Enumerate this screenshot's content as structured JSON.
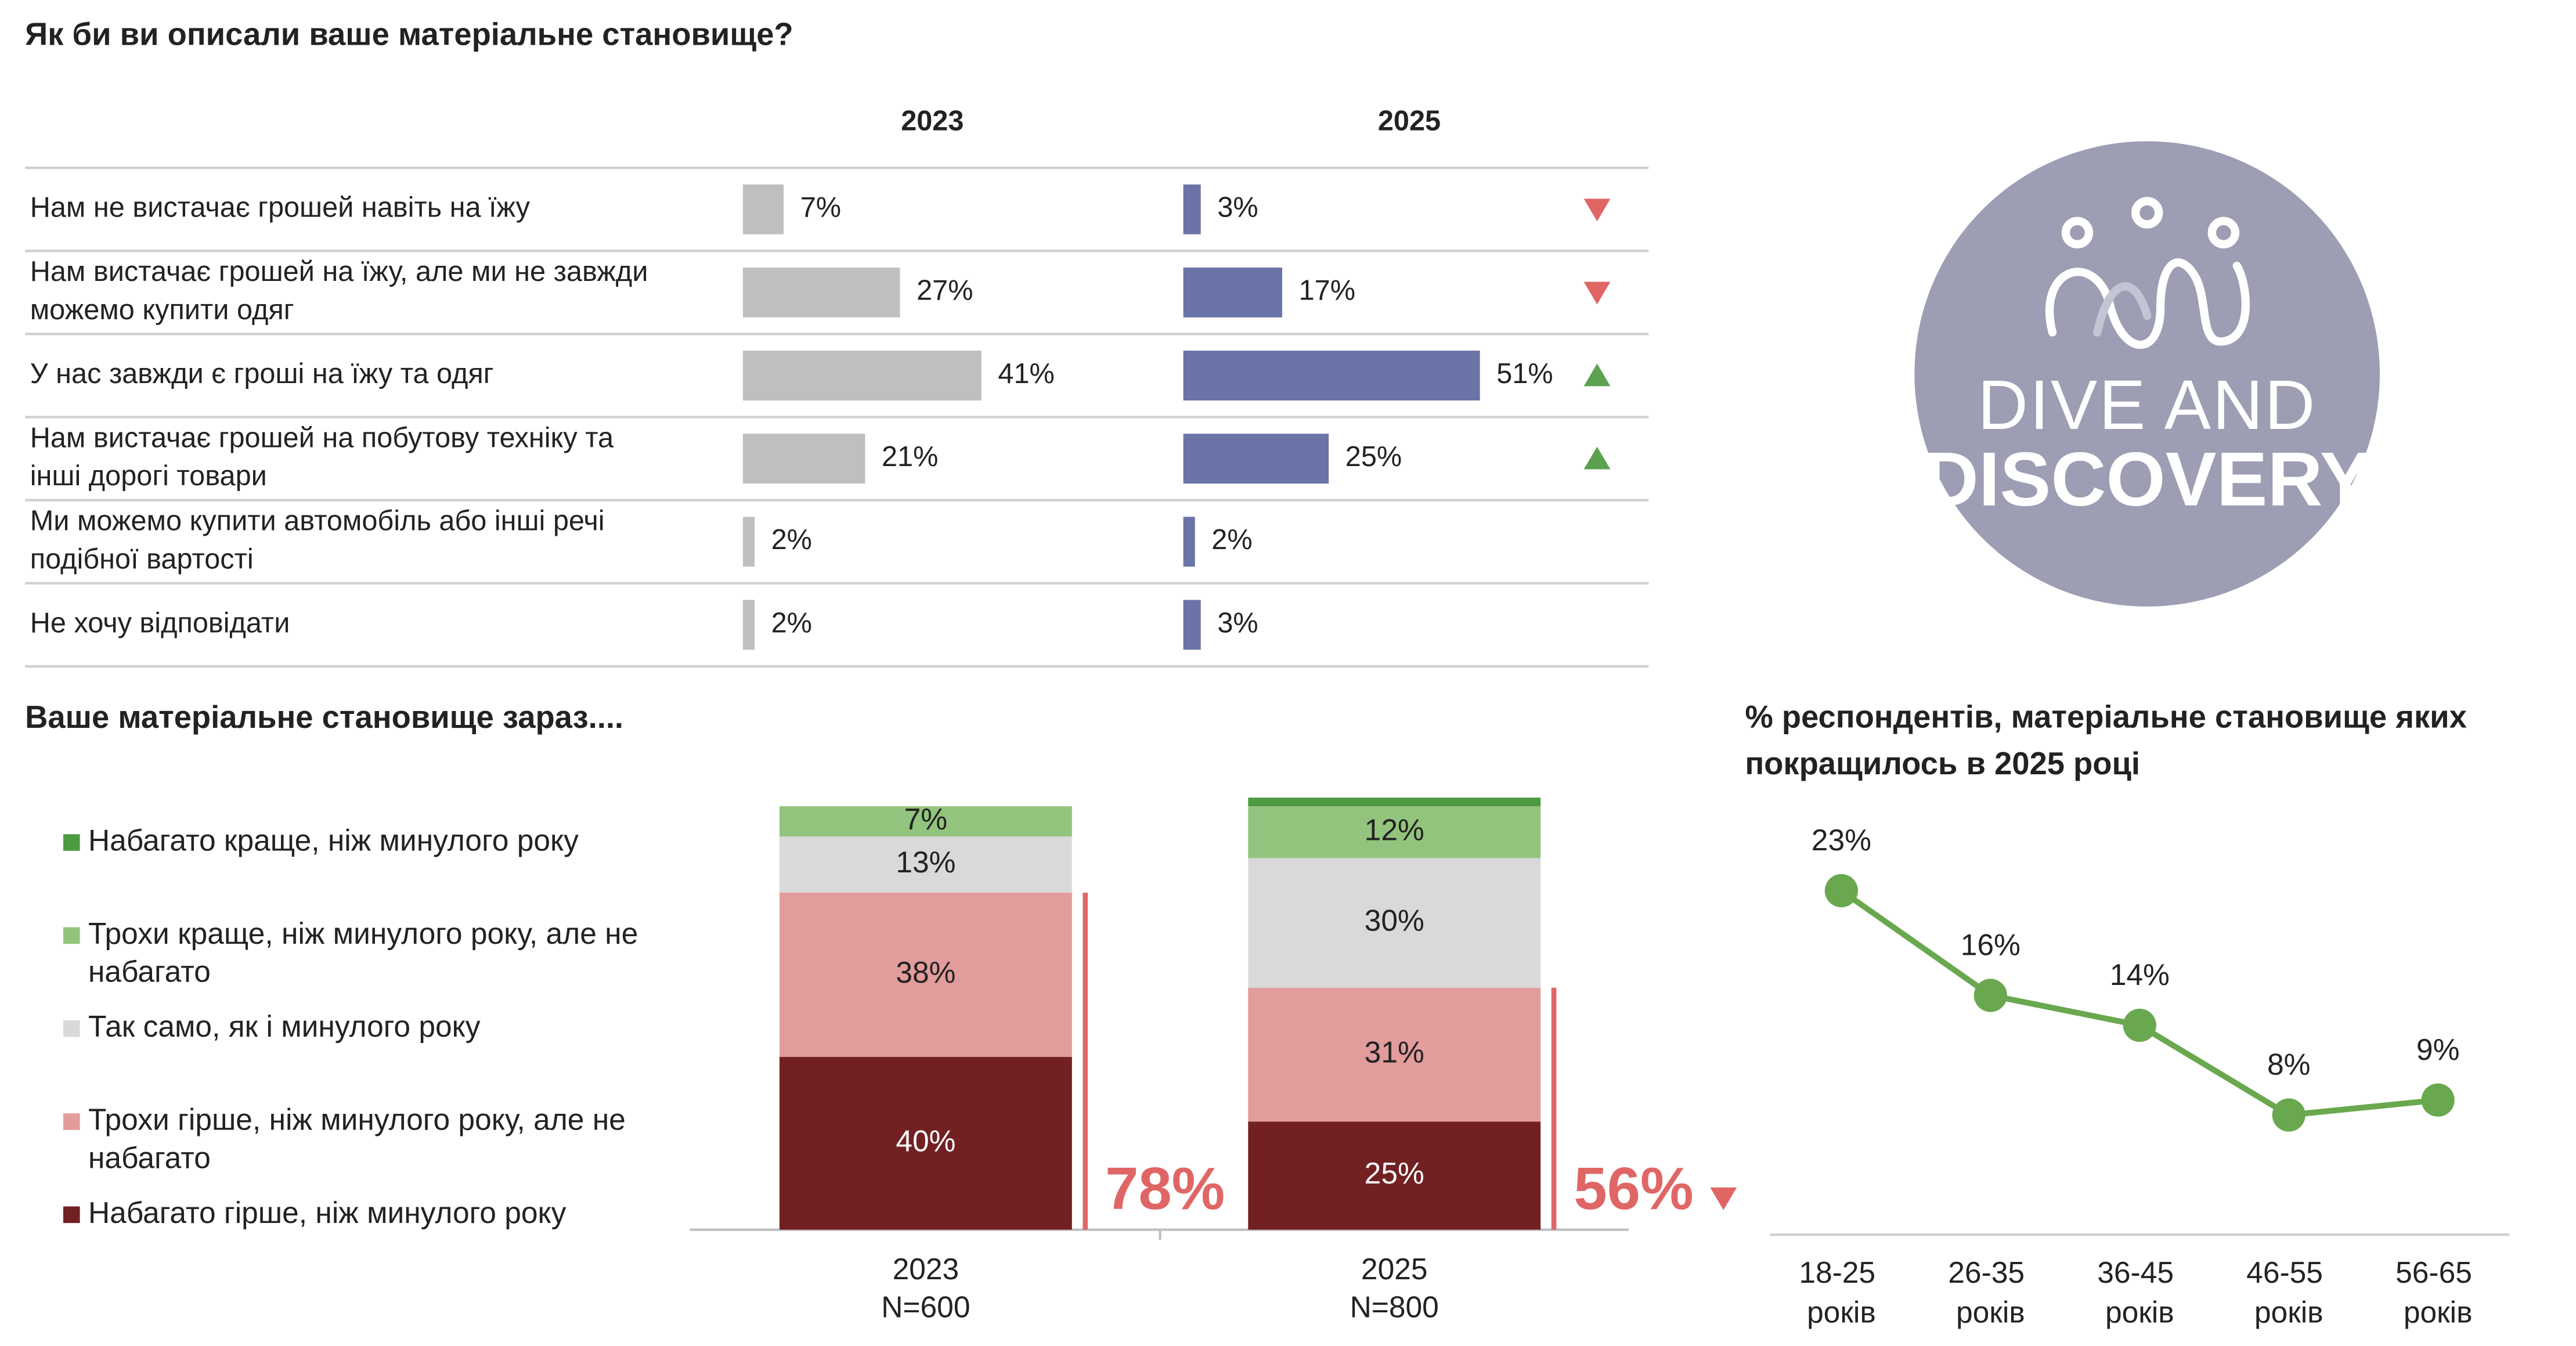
{
  "chart_data": [
    {
      "type": "bar",
      "title": "Як би ви описали ваше матеріальне становище?",
      "categories": [
        "Нам не вистачає грошей навіть на їжу",
        "Нам вистачає грошей на їжу, але ми не завжди можемо купити одяг",
        "У нас завжди є гроші на їжу та одяг",
        "Нам вистачає грошей на побутову техніку та інші дорогі товари",
        "Ми можемо купити автомобіль або інші речі подібної вартості",
        "Не хочу відповідати"
      ],
      "series": [
        {
          "name": "2023",
          "color": "#bfbfbf",
          "values": [
            7,
            27,
            41,
            21,
            2,
            2
          ],
          "value_labels": [
            "7%",
            "27%",
            "41%",
            "21%",
            "2%",
            "2%"
          ]
        },
        {
          "name": "2025",
          "color": "#6b74a6",
          "values": [
            3,
            17,
            51,
            25,
            2,
            3
          ],
          "value_labels": [
            "3%",
            "17%",
            "51%",
            "25%",
            "2%",
            "3%"
          ]
        }
      ],
      "trend": [
        "down",
        "down",
        "up",
        "up",
        null,
        null
      ],
      "trend_colors": {
        "up": "#5ba150",
        "down": "#e06666"
      }
    },
    {
      "type": "stacked_bar",
      "title": "Ваше матеріальне становище зараз....",
      "categories": [
        "2023",
        "2025"
      ],
      "category_notes": [
        "N=600",
        "N=800"
      ],
      "series": [
        {
          "name": "Набагато гірше, ніж минулого року",
          "color": "#722022",
          "values": [
            40,
            25
          ],
          "value_labels": [
            "40%",
            "25%"
          ]
        },
        {
          "name": "Трохи гірше, ніж минулого року, але не набагато",
          "color": "#e29c9c",
          "values": [
            38,
            31
          ],
          "value_labels": [
            "38%",
            "31%"
          ]
        },
        {
          "name": "Так само, як і минулого року",
          "color": "#d9d9d9",
          "values": [
            13,
            30
          ],
          "value_labels": [
            "13%",
            "30%"
          ]
        },
        {
          "name": "Трохи краще, ніж минулого року, але не набагато",
          "color": "#93c47d",
          "values": [
            7,
            12
          ],
          "value_labels": [
            "7%",
            "12%"
          ]
        },
        {
          "name": "Набагато краще, ніж минулого року",
          "color": "#4e9a43",
          "values": [
            0,
            2
          ],
          "value_labels": [
            null,
            null
          ]
        }
      ],
      "totals": {
        "values": [
          78,
          56
        ],
        "value_labels": [
          "78%",
          "56%"
        ],
        "color": "#e06666"
      },
      "total_trend": [
        null,
        "down"
      ],
      "legend": "left"
    },
    {
      "type": "line",
      "title": "% респондентів, матеріальне становище яких покращилось в 2025 році",
      "categories": [
        "18-25 років",
        "26-35 років",
        "36-45 років",
        "46-55 років",
        "56-65 років"
      ],
      "values": [
        23,
        16,
        14,
        8,
        9
      ],
      "value_labels": [
        "23%",
        "16%",
        "14%",
        "8%",
        "9%"
      ],
      "color": "#6aa84f"
    }
  ],
  "logo": {
    "lines": [
      "DIVE AND",
      "DISCOVERY"
    ]
  }
}
